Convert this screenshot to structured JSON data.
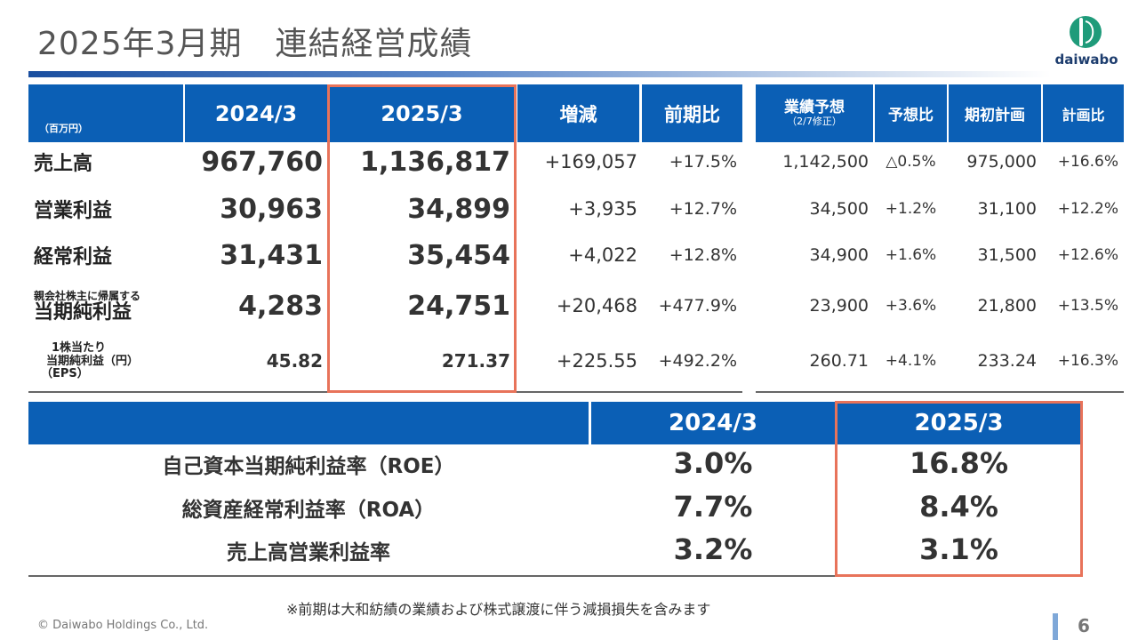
{
  "title": "2025年3月期　連結経営成績",
  "logo_text": "daiwabo",
  "unit_label": "（百万円）",
  "header": {
    "prev": "2024/3",
    "curr": "2025/3",
    "change": "増減",
    "yoy": "前期比",
    "forecast": "業績予想",
    "forecast_note": "（2/7修正）",
    "vs_forecast": "予想比",
    "initial_plan": "期初計画",
    "vs_plan": "計画比"
  },
  "rows": [
    {
      "label": "売上高",
      "prev": "967,760",
      "curr": "1,136,817",
      "change": "+169,057",
      "yoy": "+17.5%",
      "forecast": "1,142,500",
      "vs_forecast": "△0.5%",
      "plan": "975,000",
      "vs_plan": "+16.6%"
    },
    {
      "label": "営業利益",
      "prev": "30,963",
      "curr": "34,899",
      "change": "+3,935",
      "yoy": "+12.7%",
      "forecast": "34,500",
      "vs_forecast": "+1.2%",
      "plan": "31,100",
      "vs_plan": "+12.2%"
    },
    {
      "label": "経常利益",
      "prev": "31,431",
      "curr": "35,454",
      "change": "+4,022",
      "yoy": "+12.8%",
      "forecast": "34,900",
      "vs_forecast": "+1.6%",
      "plan": "31,500",
      "vs_plan": "+12.6%"
    },
    {
      "label_small": "親会社株主に帰属する",
      "label": "当期純利益",
      "prev": "4,283",
      "curr": "24,751",
      "change": "+20,468",
      "yoy": "+477.9%",
      "forecast": "23,900",
      "vs_forecast": "+3.6%",
      "plan": "21,800",
      "vs_plan": "+13.5%"
    },
    {
      "label_l1": "1株当たり",
      "label_l2": "当期純利益（円）",
      "label_l3": "（EPS）",
      "prev": "45.82",
      "curr": "271.37",
      "change": "+225.55",
      "yoy": "+492.2%",
      "forecast": "260.71",
      "vs_forecast": "+4.1%",
      "plan": "233.24",
      "vs_plan": "+16.3%"
    }
  ],
  "ratios": {
    "prev_header": "2024/3",
    "curr_header": "2025/3",
    "rows": [
      {
        "label": "自己資本当期純利益率（ROE）",
        "prev": "3.0%",
        "curr": "16.8%"
      },
      {
        "label": "総資産経常利益率（ROA）",
        "prev": "7.7%",
        "curr": "8.4%"
      },
      {
        "label": "売上高営業利益率",
        "prev": "3.2%",
        "curr": "3.1%"
      }
    ]
  },
  "note": "※前期は大和紡績の業績および株式譲渡に伴う減損損失を含みます",
  "copyright": "© Daiwabo Holdings Co., Ltd.",
  "page_number": "6",
  "colors": {
    "header_blue": "#0b5fb5",
    "highlight": "#e8735a",
    "logo_green": "#1f9b7a"
  }
}
